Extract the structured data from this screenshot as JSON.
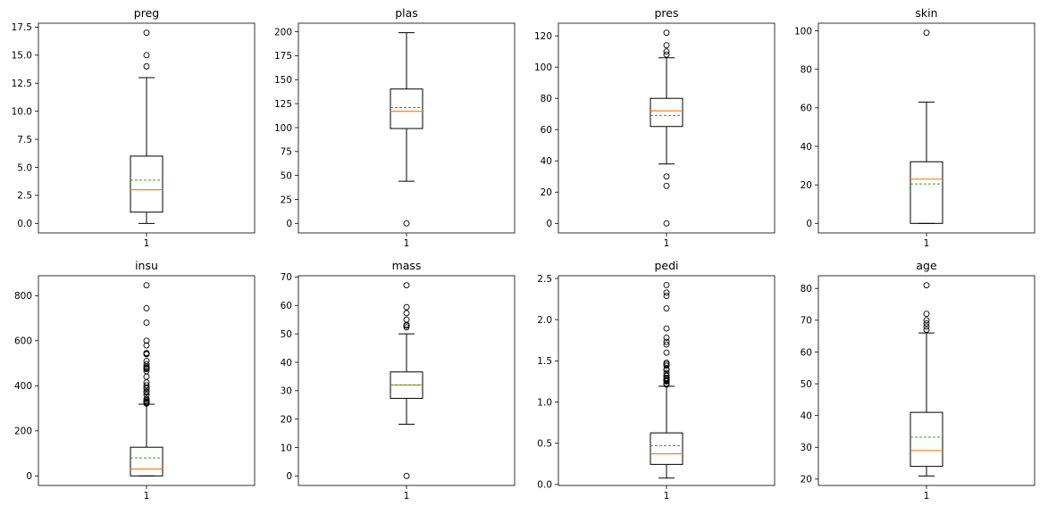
{
  "chart_data": [
    {
      "type": "box",
      "title": "preg",
      "categories": [
        "1"
      ],
      "ylim": [
        -0.85,
        17.85
      ],
      "yticks": [
        0.0,
        2.5,
        5.0,
        7.5,
        10.0,
        12.5,
        15.0,
        17.5
      ],
      "ytick_labels": [
        "0.0",
        "2.5",
        "5.0",
        "7.5",
        "10.0",
        "12.5",
        "15.0",
        "17.5"
      ],
      "whisker_low": 0,
      "q1": 1,
      "median": 3,
      "q3": 6,
      "whisker_high": 13,
      "mean": 3.85,
      "outliers": [
        14,
        15,
        17
      ]
    },
    {
      "type": "box",
      "title": "plas",
      "categories": [
        "1"
      ],
      "ylim": [
        -9.95,
        208.95
      ],
      "yticks": [
        0,
        25,
        50,
        75,
        100,
        125,
        150,
        175,
        200
      ],
      "ytick_labels": [
        "0",
        "25",
        "50",
        "75",
        "100",
        "125",
        "150",
        "175",
        "200"
      ],
      "whisker_low": 44,
      "q1": 99,
      "median": 117,
      "q3": 140.25,
      "whisker_high": 199,
      "mean": 120.9,
      "outliers": [
        0
      ]
    },
    {
      "type": "box",
      "title": "pres",
      "categories": [
        "1"
      ],
      "ylim": [
        -6.1,
        128.1
      ],
      "yticks": [
        0,
        20,
        40,
        60,
        80,
        100,
        120
      ],
      "ytick_labels": [
        "0",
        "20",
        "40",
        "60",
        "80",
        "100",
        "120"
      ],
      "whisker_low": 38,
      "q1": 62,
      "median": 72,
      "q3": 80,
      "whisker_high": 106,
      "mean": 69.1,
      "outliers": [
        0,
        24,
        30,
        108,
        110,
        114,
        122
      ]
    },
    {
      "type": "box",
      "title": "skin",
      "categories": [
        "1"
      ],
      "ylim": [
        -4.95,
        103.95
      ],
      "yticks": [
        0,
        20,
        40,
        60,
        80,
        100
      ],
      "ytick_labels": [
        "0",
        "20",
        "40",
        "60",
        "80",
        "100"
      ],
      "whisker_low": 0,
      "q1": 0,
      "median": 23,
      "q3": 32,
      "whisker_high": 63,
      "mean": 20.5,
      "outliers": [
        99
      ]
    },
    {
      "type": "box",
      "title": "insu",
      "categories": [
        "1"
      ],
      "ylim": [
        -42.3,
        888.3
      ],
      "yticks": [
        0,
        200,
        400,
        600,
        800
      ],
      "ytick_labels": [
        "0",
        "200",
        "400",
        "600",
        "800"
      ],
      "whisker_low": 0,
      "q1": 0,
      "median": 30.5,
      "q3": 127.25,
      "whisker_high": 318,
      "mean": 79.8,
      "outliers": [
        321,
        325,
        326,
        328,
        330,
        335,
        342,
        360,
        370,
        375,
        387,
        392,
        402,
        415,
        440,
        465,
        474,
        478,
        480,
        485,
        495,
        510,
        540,
        543,
        545,
        579,
        600,
        680,
        744,
        846
      ]
    },
    {
      "type": "box",
      "title": "mass",
      "categories": [
        "1"
      ],
      "ylim": [
        -3.355,
        70.455
      ],
      "yticks": [
        0,
        10,
        20,
        30,
        40,
        50,
        60,
        70
      ],
      "ytick_labels": [
        "0",
        "10",
        "20",
        "30",
        "40",
        "50",
        "60",
        "70"
      ],
      "whisker_low": 18.2,
      "q1": 27.3,
      "median": 32.0,
      "q3": 36.6,
      "whisker_high": 50.0,
      "mean": 32.0,
      "outliers": [
        0,
        52.3,
        52.9,
        53.2,
        55.0,
        57.3,
        59.4,
        67.1
      ]
    },
    {
      "type": "box",
      "title": "pedi",
      "categories": [
        "1"
      ],
      "ylim": [
        -0.0117,
        2.5327
      ],
      "yticks": [
        0.0,
        0.5,
        1.0,
        1.5,
        2.0,
        2.5
      ],
      "ytick_labels": [
        "0.0",
        "0.5",
        "1.0",
        "1.5",
        "2.0",
        "2.5"
      ],
      "whisker_low": 0.078,
      "q1": 0.244,
      "median": 0.3725,
      "q3": 0.626,
      "whisker_high": 1.191,
      "mean": 0.472,
      "outliers": [
        1.213,
        1.222,
        1.224,
        1.251,
        1.258,
        1.268,
        1.282,
        1.292,
        1.318,
        1.321,
        1.353,
        1.39,
        1.4,
        1.441,
        1.461,
        1.476,
        1.6,
        1.698,
        1.731,
        1.781,
        1.893,
        2.137,
        2.288,
        2.329,
        2.42
      ]
    },
    {
      "type": "box",
      "title": "age",
      "categories": [
        "1"
      ],
      "ylim": [
        18.0,
        84.0
      ],
      "yticks": [
        20,
        30,
        40,
        50,
        60,
        70,
        80
      ],
      "ytick_labels": [
        "20",
        "30",
        "40",
        "50",
        "60",
        "70",
        "80"
      ],
      "whisker_low": 21,
      "q1": 24,
      "median": 29,
      "q3": 41,
      "whisker_high": 66,
      "mean": 33.2,
      "outliers": [
        67,
        68,
        69,
        70,
        72,
        81
      ]
    }
  ],
  "colors": {
    "median": "#ff7f0e",
    "mean": "#2ca02c",
    "box": "#000000",
    "frame": "#000000"
  }
}
